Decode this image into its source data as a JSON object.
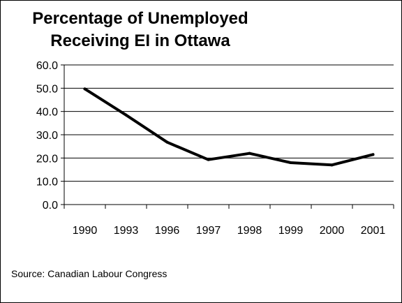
{
  "chart_data": {
    "type": "line",
    "title_lines": [
      "Percentage of Unemployed",
      "Receiving EI in Ottawa"
    ],
    "categories": [
      "1990",
      "1993",
      "1996",
      "1997",
      "1998",
      "1999",
      "2000",
      "2001"
    ],
    "series": [
      {
        "values": [
          49.7,
          38.5,
          26.8,
          19.3,
          22.0,
          18.0,
          17.0,
          21.5
        ]
      }
    ],
    "ylim": [
      0,
      60
    ],
    "yticks": [
      "0.0",
      "10.0",
      "20.0",
      "30.0",
      "40.0",
      "50.0",
      "60.0"
    ],
    "xlabel": "",
    "ylabel": "",
    "grid": "horizontal",
    "line_color": "#000000"
  },
  "source": "Source: Canadian Labour Congress"
}
